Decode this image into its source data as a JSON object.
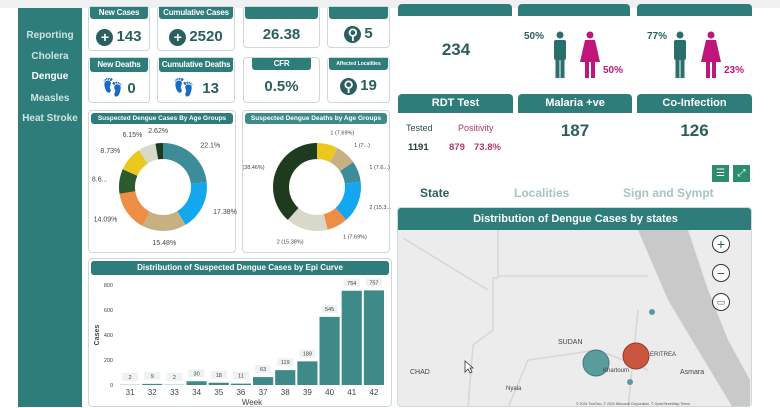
{
  "sidebar": {
    "items": [
      {
        "label": "Reporting"
      },
      {
        "label": "Cholera"
      },
      {
        "label": "Dengue",
        "active": true
      },
      {
        "label": "Measles"
      },
      {
        "label": "Heat Stroke"
      }
    ]
  },
  "kpis": {
    "new_cases": {
      "label": "New Cases",
      "value": "143",
      "icon": "plus-circle-icon"
    },
    "cumulative_cases": {
      "label": "Cumulative Cases",
      "value": "2520",
      "icon": "plus-circle-icon"
    },
    "kpi3": {
      "label": "",
      "value": "26.38"
    },
    "kpi4": {
      "label": "",
      "value": "5",
      "icon": "location-pin-icon"
    },
    "new_deaths": {
      "label": "New Deaths",
      "value": "0",
      "icon": "footprints-icon"
    },
    "cumulative_deaths": {
      "label": "Cumulative Deaths",
      "value": "13",
      "icon": "footprints-icon"
    },
    "cfr": {
      "label": "CFR",
      "value": "0.5%"
    },
    "affected_localities": {
      "label": "Affected Localities",
      "value": "19",
      "icon": "location-pin-icon"
    }
  },
  "right": {
    "top_value": "234",
    "cases_gender": {
      "male": "50%",
      "female": "50%"
    },
    "deaths_gender": {
      "male": "77%",
      "female": "23%"
    },
    "rdt": {
      "title": "RDT Test",
      "tested_label": "Tested",
      "positivity_label": "Positivity",
      "tested": "1191",
      "positive": "879",
      "positivity": "73.8%"
    },
    "malaria": {
      "title": "Malaria +ve",
      "value": "187"
    },
    "coinfection": {
      "title": "Co-Infection",
      "value": "126"
    },
    "tabs": [
      {
        "label": "State",
        "active": true
      },
      {
        "label": "Localities"
      },
      {
        "label": "Sign and Sympt"
      }
    ],
    "map": {
      "title": "Distribution of Dengue Cases by states",
      "labels": [
        "SUDAN",
        "CHAD",
        "ERITREA",
        "Asmara",
        "Khartoum",
        "Nyala"
      ],
      "attribution": "© 2024 TomTom, © 2024 Microsoft Corporation, © OpenStreetMap  Terms"
    }
  },
  "colors": {
    "teal": "#2e7d7a",
    "male": "#2b6f6c",
    "female": "#c0157a",
    "positivity": "#b03a6a",
    "bar": "#3d8a88",
    "bubble_teal": "#5a9c9c",
    "bubble_red": "#c8553d"
  },
  "chart_data": [
    {
      "type": "pie",
      "title": "Suspected Dengue Cases By Age Groups",
      "donut": true,
      "slices": [
        {
          "label": "22.1%",
          "value": 22.1,
          "color": "#3c8d99"
        },
        {
          "label": "17.38%",
          "value": 17.38,
          "color": "#12a7ef"
        },
        {
          "label": "15.48%",
          "value": 15.48,
          "color": "#c7b183"
        },
        {
          "label": "14.09%",
          "value": 14.09,
          "color": "#ee8d44"
        },
        {
          "label": "8.6...",
          "value": 8.6,
          "color": "#2a5a2e"
        },
        {
          "label": "8.73%",
          "value": 8.73,
          "color": "#ecc81f"
        },
        {
          "label": "6.15%",
          "value": 6.15,
          "color": "#d9d9c9"
        },
        {
          "label": "2.62%",
          "value": 2.62,
          "color": "#1b3a1e"
        }
      ]
    },
    {
      "type": "pie",
      "title": "Suspected Dengue Deaths by Age Groups",
      "donut": true,
      "slices": [
        {
          "label": "1 (7.69%)",
          "value": 1,
          "color": "#ecc81f"
        },
        {
          "label": "1 (7...)",
          "value": 1,
          "color": "#c7b183"
        },
        {
          "label": "1 (7.6...)",
          "value": 1,
          "color": "#3c8d99"
        },
        {
          "label": "2 (15.3...)",
          "value": 2,
          "color": "#12a7ef"
        },
        {
          "label": "1 (7.69%)",
          "value": 1,
          "color": "#ee8d44"
        },
        {
          "label": "2 (15.38%)",
          "value": 2,
          "color": "#d9d9c9"
        },
        {
          "label": "5 (38.46%)",
          "value": 5,
          "color": "#1e3b1f"
        }
      ]
    },
    {
      "type": "bar",
      "title": "Distribution of Suspected Dengue Cases by Epi Curve",
      "xlabel": "Week",
      "ylabel": "Cases",
      "categories": [
        "31",
        "32",
        "33",
        "34",
        "35",
        "36",
        "37",
        "38",
        "39",
        "40",
        "41",
        "42"
      ],
      "values": [
        2,
        9,
        2,
        30,
        18,
        11,
        63,
        119,
        189,
        545,
        754,
        757
      ],
      "ylim": [
        0,
        800
      ],
      "yticks": [
        0,
        200,
        400,
        600,
        800
      ]
    }
  ]
}
